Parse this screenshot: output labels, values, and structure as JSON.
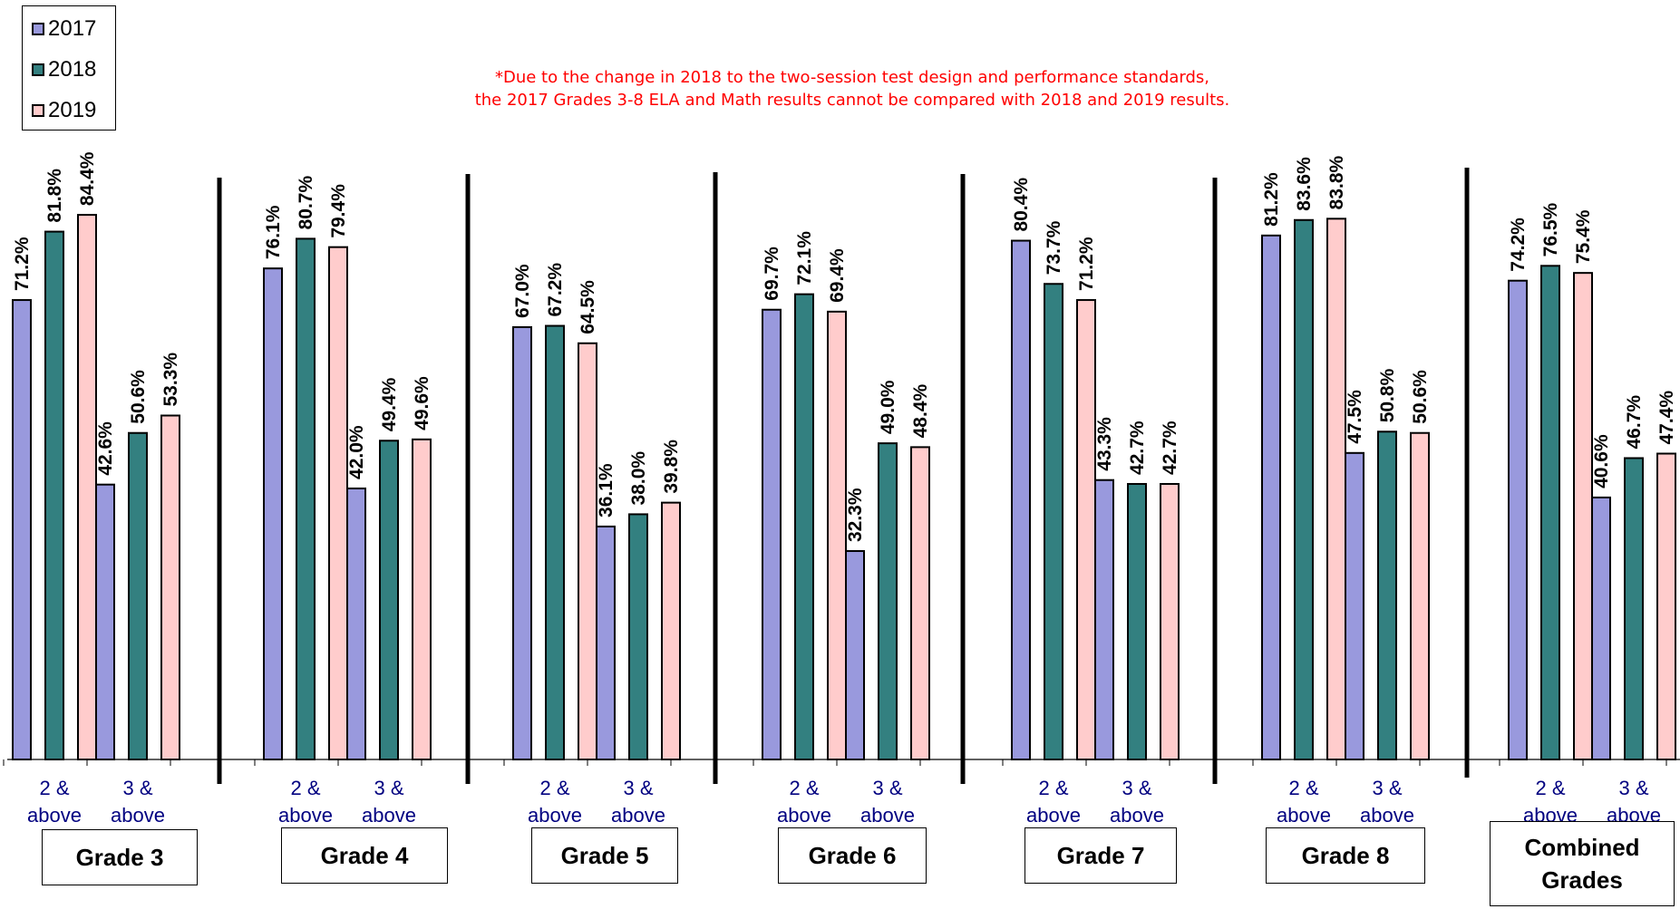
{
  "note": {
    "line1": "*Due to the change in 2018 to the two-session test design and performance standards,",
    "line2": "the 2017 Grades 3-8 ELA and Math results cannot be compared with 2018 and 2019 results."
  },
  "legend": [
    {
      "label": "2017",
      "color": "#9999dd"
    },
    {
      "label": "2018",
      "color": "#338080"
    },
    {
      "label": "2019",
      "color": "#ffcccc"
    }
  ],
  "chart_data": {
    "type": "bar",
    "ylim": [
      0,
      100
    ],
    "grid": false,
    "legend_position": "top-left",
    "series": [
      {
        "name": "2017",
        "color": "#9999dd"
      },
      {
        "name": "2018",
        "color": "#338080"
      },
      {
        "name": "2019",
        "color": "#ffcccc"
      }
    ],
    "groups": [
      {
        "label": "Grade 3",
        "categories": [
          {
            "label_line1": "2 &",
            "label_line2": "above",
            "values": [
              71.2,
              81.8,
              84.4
            ],
            "labels": [
              "71.2%",
              "81.8%",
              "84.4%"
            ]
          },
          {
            "label_line1": "3 &",
            "label_line2": "above",
            "values": [
              42.6,
              50.6,
              53.3
            ],
            "labels": [
              "42.6%",
              "50.6%",
              "53.3%"
            ]
          }
        ]
      },
      {
        "label": "Grade 4",
        "categories": [
          {
            "label_line1": "2 &",
            "label_line2": "above",
            "values": [
              76.1,
              80.7,
              79.4
            ],
            "labels": [
              "76.1%",
              "80.7%",
              "79.4%"
            ]
          },
          {
            "label_line1": "3 &",
            "label_line2": "above",
            "values": [
              42.0,
              49.4,
              49.6
            ],
            "labels": [
              "42.0%",
              "49.4%",
              "49.6%"
            ]
          }
        ]
      },
      {
        "label": "Grade 5",
        "categories": [
          {
            "label_line1": "2 &",
            "label_line2": "above",
            "values": [
              67.0,
              67.2,
              64.5
            ],
            "labels": [
              "67.0%",
              "67.2%",
              "64.5%"
            ]
          },
          {
            "label_line1": "3 &",
            "label_line2": "above",
            "values": [
              36.1,
              38.0,
              39.8
            ],
            "labels": [
              "36.1%",
              "38.0%",
              "39.8%"
            ]
          }
        ]
      },
      {
        "label": "Grade 6",
        "categories": [
          {
            "label_line1": "2 &",
            "label_line2": "above",
            "values": [
              69.7,
              72.1,
              69.4
            ],
            "labels": [
              "69.7%",
              "72.1%",
              "69.4%"
            ]
          },
          {
            "label_line1": "3 &",
            "label_line2": "above",
            "values": [
              32.3,
              49.0,
              48.4
            ],
            "labels": [
              "32.3%",
              "49.0%",
              "48.4%"
            ]
          }
        ]
      },
      {
        "label": "Grade 7",
        "categories": [
          {
            "label_line1": "2 &",
            "label_line2": "above",
            "values": [
              80.4,
              73.7,
              71.2
            ],
            "labels": [
              "80.4%",
              "73.7%",
              "71.2%"
            ]
          },
          {
            "label_line1": "3 &",
            "label_line2": "above",
            "values": [
              43.3,
              42.7,
              42.7
            ],
            "labels": [
              "43.3%",
              "42.7%",
              "42.7%"
            ]
          }
        ]
      },
      {
        "label": "Grade 8",
        "categories": [
          {
            "label_line1": "2 &",
            "label_line2": "above",
            "values": [
              81.2,
              83.6,
              83.8
            ],
            "labels": [
              "81.2%",
              "83.6%",
              "83.8%"
            ]
          },
          {
            "label_line1": "3 &",
            "label_line2": "above",
            "values": [
              47.5,
              50.8,
              50.6
            ],
            "labels": [
              "47.5%",
              "50.8%",
              "50.6%"
            ]
          }
        ]
      },
      {
        "label_line1": "Combined",
        "label_line2": "Grades",
        "categories": [
          {
            "label_line1": "2 &",
            "label_line2": "above",
            "values": [
              74.2,
              76.5,
              75.4
            ],
            "labels": [
              "74.2%",
              "76.5%",
              "75.4%"
            ]
          },
          {
            "label_line1": "3 &",
            "label_line2": "above",
            "values": [
              40.6,
              46.7,
              47.4
            ],
            "labels": [
              "40.6%",
              "46.7%",
              "47.4%"
            ]
          }
        ]
      }
    ]
  }
}
